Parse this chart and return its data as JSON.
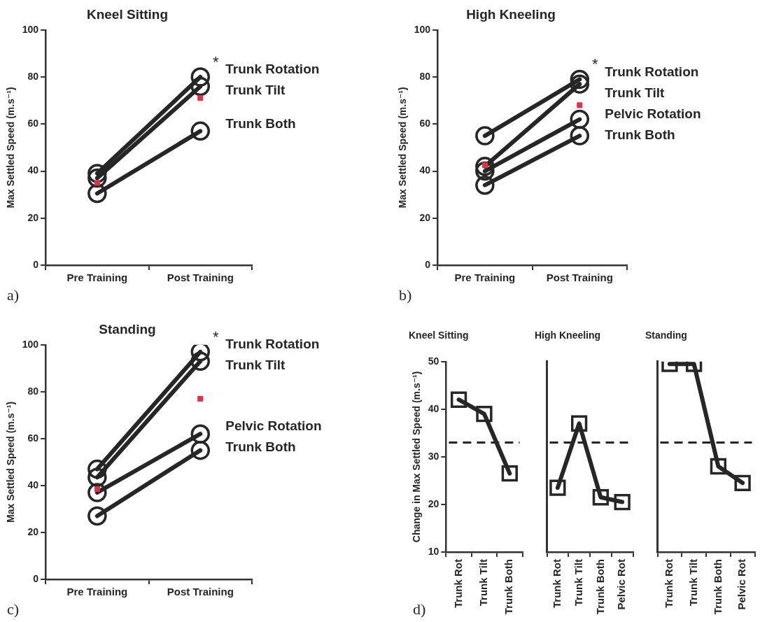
{
  "chart_data": [
    {
      "type": "line",
      "title": "Kneel Sitting",
      "ylabel": "Max Settled Speed (m.s⁻¹)",
      "categories": [
        "Pre Training",
        "Post Training"
      ],
      "ylim": [
        0,
        100
      ],
      "yticks": [
        0,
        20,
        40,
        60,
        80,
        100
      ],
      "legend": false,
      "marker": "circle",
      "series": [
        {
          "name": "Trunk Rotation",
          "color": "#262626",
          "values": [
            39,
            80
          ]
        },
        {
          "name": "Trunk Tilt",
          "color": "#262626",
          "values": [
            37,
            76
          ]
        },
        {
          "name": "Trunk Both",
          "color": "#262626",
          "values": [
            30.5,
            57
          ]
        },
        {
          "type": "scatter",
          "marker": "square",
          "color": "#e0314b",
          "values": [
            35,
            71
          ]
        }
      ],
      "annotations": [
        "a)",
        "*"
      ]
    },
    {
      "type": "line",
      "title": "High Kneeling",
      "ylabel": "Max Settled Speed (m.s⁻¹)",
      "categories": [
        "Pre Training",
        "Post Training"
      ],
      "ylim": [
        0,
        100
      ],
      "yticks": [
        0,
        20,
        40,
        60,
        80,
        100
      ],
      "legend": false,
      "marker": "circle",
      "series": [
        {
          "name": "Trunk Rotation",
          "color": "#262626",
          "values": [
            55,
            79
          ]
        },
        {
          "name": "Trunk Tilt",
          "color": "#262626",
          "values": [
            42,
            77
          ]
        },
        {
          "name": "Pelvic Rotation",
          "color": "#262626",
          "values": [
            40,
            62
          ]
        },
        {
          "name": "Trunk Both",
          "color": "#262626",
          "values": [
            34,
            55
          ]
        },
        {
          "type": "scatter",
          "marker": "square",
          "color": "#e0314b",
          "values": [
            42.5,
            68
          ]
        }
      ],
      "annotations": [
        "b)",
        "*"
      ]
    },
    {
      "type": "line",
      "title": "Standing",
      "ylabel": "Max Settled Speed (m.s⁻¹)",
      "categories": [
        "Pre Training",
        "Post Training"
      ],
      "ylim": [
        0,
        100
      ],
      "yticks": [
        0,
        20,
        40,
        60,
        80,
        100
      ],
      "legend": false,
      "marker": "circle",
      "series": [
        {
          "name": "Trunk Rotation",
          "color": "#262626",
          "values": [
            47,
            97
          ]
        },
        {
          "name": "Trunk Tilt",
          "color": "#262626",
          "values": [
            43.5,
            93
          ]
        },
        {
          "name": "Pelvic Rotation",
          "color": "#262626",
          "values": [
            37,
            62
          ]
        },
        {
          "name": "Trunk Both",
          "color": "#262626",
          "values": [
            27,
            55
          ]
        },
        {
          "type": "scatter",
          "marker": "square",
          "color": "#e0314b",
          "values": [
            38.5,
            77
          ]
        }
      ],
      "annotations": [
        "c)",
        "*"
      ]
    },
    {
      "type": "line",
      "title": "Kneel Sitting",
      "ylabel": "Change in Max Settled Speed (m.s⁻¹)",
      "categories": [
        "Trunk Rot",
        "Trunk Tilt",
        "Trunk Both"
      ],
      "ylim": [
        10,
        50
      ],
      "yticks": [
        10,
        20,
        30,
        40,
        50
      ],
      "legend": false,
      "marker": "square",
      "series": [
        {
          "color": "#262626",
          "values": [
            42,
            39,
            26.5
          ]
        }
      ],
      "ref_lines": [
        {
          "axis": "y",
          "value": 33,
          "line_style": "dashed",
          "color": "#262626"
        }
      ],
      "annotations": [
        "d)"
      ]
    },
    {
      "type": "line",
      "title": "High Kneeling",
      "categories": [
        "Trunk Rot",
        "Trunk Tilt",
        "Trunk Both",
        "Pelvic Rot"
      ],
      "ylim": [
        10,
        50
      ],
      "yticks": [
        10,
        20,
        30,
        40,
        50
      ],
      "tick_labels": "x",
      "legend": false,
      "marker": "square",
      "series": [
        {
          "color": "#262626",
          "values": [
            23.5,
            37,
            21.5,
            20.5
          ]
        }
      ],
      "ref_lines": [
        {
          "axis": "y",
          "value": 33,
          "line_style": "dashed",
          "color": "#262626"
        }
      ]
    },
    {
      "type": "line",
      "title": "Standing",
      "categories": [
        "Trunk Rot",
        "Trunk Tilt",
        "Trunk Both",
        "Pelvic Rot"
      ],
      "ylim": [
        10,
        50
      ],
      "yticks": [
        10,
        20,
        30,
        40,
        50
      ],
      "tick_labels": "x",
      "legend": false,
      "marker": "square",
      "series": [
        {
          "color": "#262626",
          "values": [
            49.5,
            49.5,
            28,
            24.5
          ]
        }
      ],
      "ref_lines": [
        {
          "axis": "y",
          "value": 33,
          "line_style": "dashed",
          "color": "#262626"
        }
      ]
    }
  ]
}
